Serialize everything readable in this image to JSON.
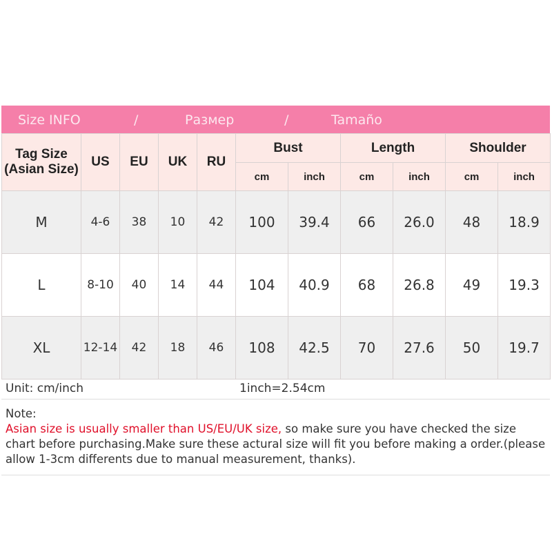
{
  "banner": {
    "title_en": "Size INFO",
    "sep": "/",
    "title_ru": "Размер",
    "title_es": "Tamaño"
  },
  "headers": {
    "tag_size": "Tag Size (Asian Size)",
    "us": "US",
    "eu": "EU",
    "uk": "UK",
    "ru": "RU",
    "bust": "Bust",
    "length": "Length",
    "shoulder": "Shoulder",
    "cm": "cm",
    "inch": "inch"
  },
  "rows": [
    [
      "M",
      "4-6",
      "38",
      "10",
      "42",
      "100",
      "39.4",
      "66",
      "26.0",
      "48",
      "18.9"
    ],
    [
      "L",
      "8-10",
      "40",
      "14",
      "44",
      "104",
      "40.9",
      "68",
      "26.8",
      "49",
      "19.3"
    ],
    [
      "XL",
      "12-14",
      "42",
      "18",
      "46",
      "108",
      "42.5",
      "70",
      "27.6",
      "50",
      "19.7"
    ]
  ],
  "footer": {
    "unit": "Unit: cm/inch",
    "conversion": "1inch=2.54cm"
  },
  "note": {
    "label": "Note:",
    "warning": "Asian size is usually smaller than US/EU/UK size,",
    "text": " so make sure you have checked the size chart before purchasing.Make sure these actural size will fit you before making a order.(please allow 1-3cm differents due to manual measurement, thanks)."
  },
  "colors": {
    "banner": "#f57fa9",
    "header_bg": "#fde9e6",
    "warning": "#e0102a"
  }
}
